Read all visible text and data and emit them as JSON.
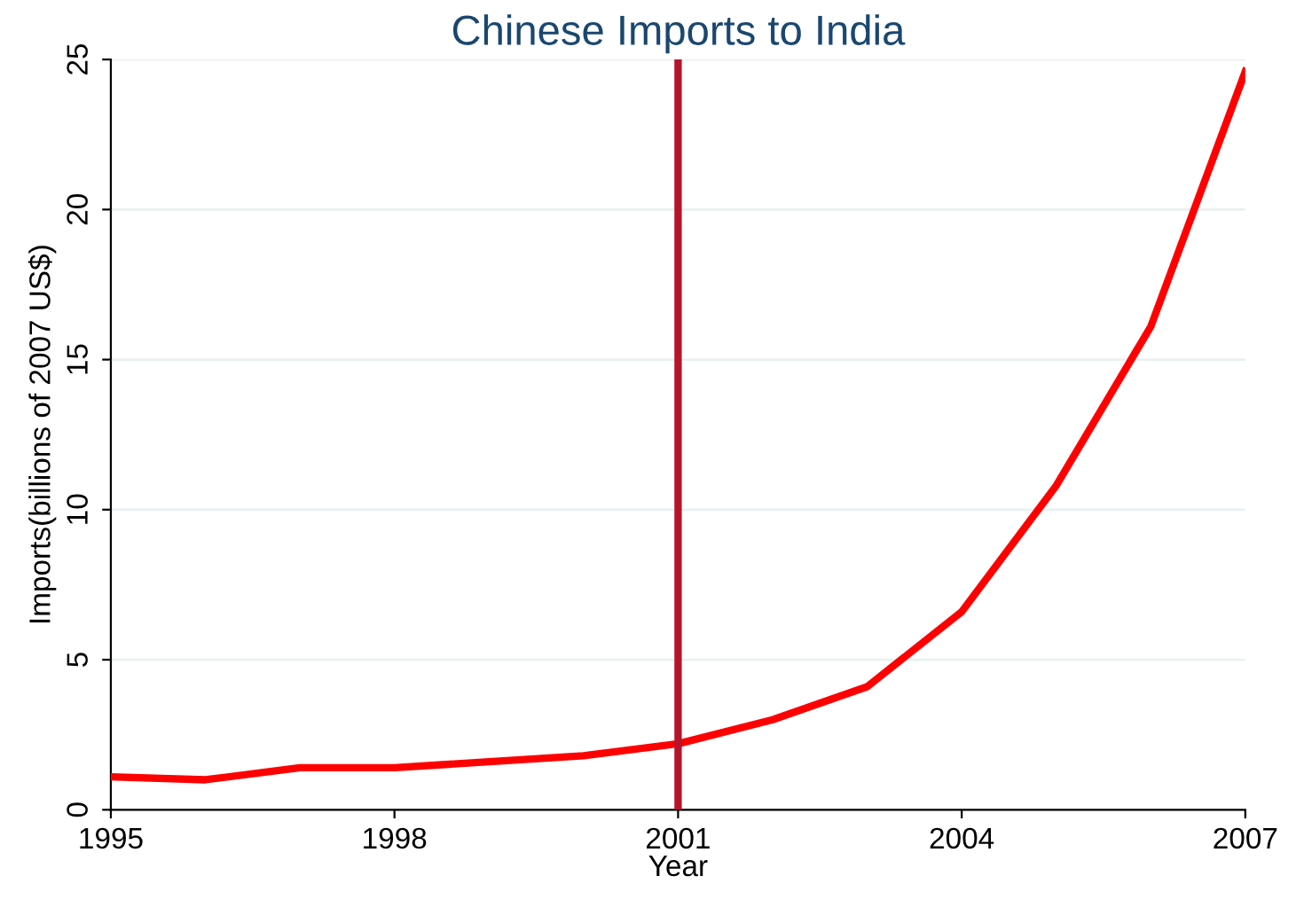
{
  "chart_data": {
    "type": "line",
    "title": "Chinese Imports to India",
    "xlabel": "Year",
    "ylabel": "Imports(billions of 2007 US$)",
    "x": [
      1995,
      1996,
      1997,
      1998,
      1999,
      2000,
      2001,
      2002,
      2003,
      2004,
      2005,
      2006,
      2007
    ],
    "series": [
      {
        "color": "#ff0000",
        "values": [
          1.1,
          1.0,
          1.4,
          1.4,
          1.6,
          1.8,
          2.2,
          3.0,
          4.1,
          6.6,
          10.8,
          16.1,
          24.6
        ]
      }
    ],
    "xlim": [
      1995,
      2007
    ],
    "xticks": [
      1995,
      1998,
      2001,
      2004,
      2007
    ],
    "ylim": [
      0,
      25
    ],
    "yticks": [
      0,
      5,
      10,
      15,
      20,
      25
    ],
    "grid": "y",
    "marker": "none",
    "line_style": "solid",
    "ref_lines": [
      {
        "axis": "x",
        "value": 2001,
        "color": "#b5152b"
      }
    ]
  }
}
